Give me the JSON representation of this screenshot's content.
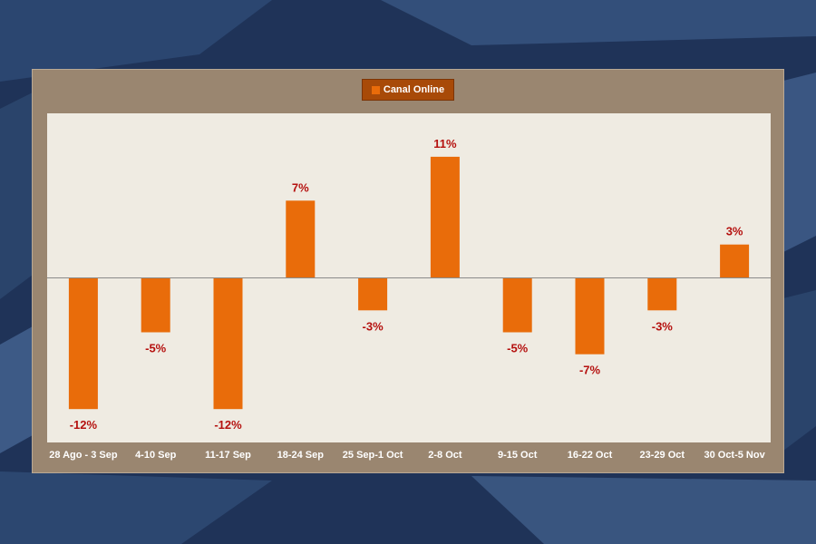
{
  "colors": {
    "bar": "#e96c0a",
    "data_label": "#b5110f",
    "axis": "#8a8a8a",
    "card": "#9a8670",
    "plot": "#efebe2",
    "legend_bg": "#a84a08"
  },
  "chart_data": {
    "type": "bar",
    "title": "",
    "xlabel": "",
    "ylabel": "",
    "legend_position": "top-center",
    "grid": false,
    "ylim": [
      -14,
      13
    ],
    "categories": [
      "28 Ago - 3 Sep",
      "4-10 Sep",
      "11-17 Sep",
      "18-24 Sep",
      "25 Sep-1 Oct",
      "2-8 Oct",
      "9-15 Oct",
      "16-22 Oct",
      "23-29 Oct",
      "30 Oct-5 Nov"
    ],
    "series": [
      {
        "name": "Canal Online",
        "values": [
          -12,
          -5,
          -12,
          7,
          -3,
          11,
          -5,
          -7,
          -3,
          3
        ],
        "labels": [
          "-12%",
          "-5%",
          "-12%",
          "7%",
          "-3%",
          "11%",
          "-5%",
          "-7%",
          "-3%",
          "3%"
        ]
      }
    ]
  }
}
